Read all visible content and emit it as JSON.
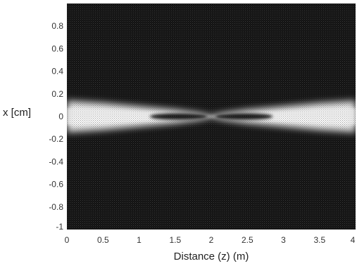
{
  "chart_data": {
    "type": "heatmap",
    "title": "",
    "xlabel": "Distance (z) (m)",
    "ylabel": "x [cm]",
    "xlim": [
      0,
      4
    ],
    "ylim": [
      -1,
      1
    ],
    "x_ticks": [
      0,
      0.5,
      1,
      1.5,
      2,
      2.5,
      3,
      3.5,
      4
    ],
    "x_tick_labels": [
      "0",
      "0.5",
      "1",
      "1.5",
      "2",
      "2.5",
      "3",
      "3.5",
      "4"
    ],
    "y_ticks": [
      0.8,
      0.6,
      0.4,
      0.2,
      0,
      -0.2,
      -0.4,
      -0.6,
      -0.8,
      -1
    ],
    "y_tick_labels": [
      "0.8",
      "0.6",
      "0.4",
      "0.2",
      "0",
      "-0.2",
      "-0.4",
      "-0.6",
      "-0.8",
      "-1"
    ],
    "colormap": "grayscale",
    "colors": {
      "low": "#101010",
      "high": "#f4f4f4"
    },
    "intensity_profile": {
      "z": [
        0,
        0.5,
        1,
        1.5,
        1.8,
        2,
        2.2,
        2.5,
        3,
        3.5,
        4
      ],
      "half_width_cm": [
        0.14,
        0.12,
        0.09,
        0.06,
        0.035,
        0.01,
        0.035,
        0.06,
        0.09,
        0.12,
        0.14
      ],
      "dark_core": [
        {
          "z_start": 1.15,
          "z_end": 1.95,
          "half_width_cm": 0.03
        },
        {
          "z_start": 2.05,
          "z_end": 2.85,
          "half_width_cm": 0.03
        }
      ],
      "focus_z": 2.0
    }
  }
}
